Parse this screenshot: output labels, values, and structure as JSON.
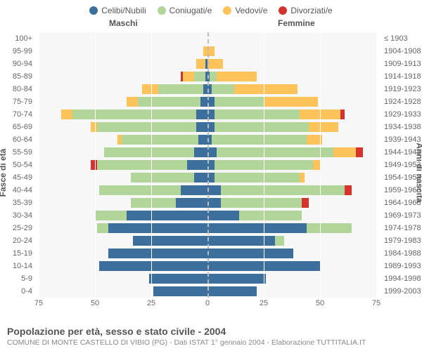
{
  "legend": [
    {
      "label": "Celibi/Nubili",
      "color": "#3c6f9c"
    },
    {
      "label": "Coniugati/e",
      "color": "#b2d69a"
    },
    {
      "label": "Vedovi/e",
      "color": "#fcc35b"
    },
    {
      "label": "Divorziati/e",
      "color": "#d6322e"
    }
  ],
  "headers": {
    "male": "Maschi",
    "female": "Femmine"
  },
  "axis": {
    "left_title": "Fasce di età",
    "right_title": "Anni di nascita",
    "max": 75,
    "ticks": [
      75,
      50,
      25,
      0,
      25,
      50,
      75
    ]
  },
  "colors": {
    "celibi": "#3c6f9c",
    "coniugati": "#b2d69a",
    "vedovi": "#fcc35b",
    "divorziati": "#d6322e",
    "plot_bg": "#f7f7f7",
    "grid": "#ffffff",
    "center": "#bbbbbb"
  },
  "rows": [
    {
      "age": "100+",
      "birth": "≤ 1903",
      "m": {
        "c": 0,
        "m": 0,
        "w": 0,
        "d": 0
      },
      "f": {
        "c": 0,
        "m": 0,
        "w": 0,
        "d": 0
      }
    },
    {
      "age": "95-99",
      "birth": "1904-1908",
      "m": {
        "c": 0,
        "m": 0,
        "w": 2,
        "d": 0
      },
      "f": {
        "c": 0,
        "m": 0,
        "w": 3,
        "d": 0
      }
    },
    {
      "age": "90-94",
      "birth": "1909-1913",
      "m": {
        "c": 1,
        "m": 0,
        "w": 4,
        "d": 0
      },
      "f": {
        "c": 0,
        "m": 0,
        "w": 7,
        "d": 0
      }
    },
    {
      "age": "85-89",
      "birth": "1914-1918",
      "m": {
        "c": 1,
        "m": 5,
        "w": 5,
        "d": 1
      },
      "f": {
        "c": 1,
        "m": 3,
        "w": 18,
        "d": 0
      }
    },
    {
      "age": "80-84",
      "birth": "1919-1923",
      "m": {
        "c": 2,
        "m": 20,
        "w": 7,
        "d": 0
      },
      "f": {
        "c": 2,
        "m": 10,
        "w": 28,
        "d": 0
      }
    },
    {
      "age": "75-79",
      "birth": "1924-1928",
      "m": {
        "c": 3,
        "m": 28,
        "w": 5,
        "d": 0
      },
      "f": {
        "c": 3,
        "m": 22,
        "w": 24,
        "d": 0
      }
    },
    {
      "age": "70-74",
      "birth": "1929-1933",
      "m": {
        "c": 5,
        "m": 55,
        "w": 5,
        "d": 0
      },
      "f": {
        "c": 3,
        "m": 38,
        "w": 18,
        "d": 2
      }
    },
    {
      "age": "65-69",
      "birth": "1934-1938",
      "m": {
        "c": 5,
        "m": 44,
        "w": 3,
        "d": 0
      },
      "f": {
        "c": 3,
        "m": 42,
        "w": 13,
        "d": 0
      }
    },
    {
      "age": "60-64",
      "birth": "1939-1943",
      "m": {
        "c": 4,
        "m": 34,
        "w": 2,
        "d": 0
      },
      "f": {
        "c": 2,
        "m": 42,
        "w": 7,
        "d": 0
      }
    },
    {
      "age": "55-59",
      "birth": "1944-1948",
      "m": {
        "c": 6,
        "m": 40,
        "w": 0,
        "d": 0
      },
      "f": {
        "c": 4,
        "m": 52,
        "w": 10,
        "d": 3
      }
    },
    {
      "age": "50-54",
      "birth": "1949-1953",
      "m": {
        "c": 9,
        "m": 40,
        "w": 0,
        "d": 3
      },
      "f": {
        "c": 3,
        "m": 44,
        "w": 3,
        "d": 0
      }
    },
    {
      "age": "45-49",
      "birth": "1954-1958",
      "m": {
        "c": 6,
        "m": 28,
        "w": 0,
        "d": 0
      },
      "f": {
        "c": 3,
        "m": 38,
        "w": 2,
        "d": 0
      }
    },
    {
      "age": "40-44",
      "birth": "1959-1963",
      "m": {
        "c": 12,
        "m": 36,
        "w": 0,
        "d": 0
      },
      "f": {
        "c": 6,
        "m": 55,
        "w": 0,
        "d": 3
      }
    },
    {
      "age": "35-39",
      "birth": "1964-1968",
      "m": {
        "c": 14,
        "m": 20,
        "w": 0,
        "d": 0
      },
      "f": {
        "c": 6,
        "m": 36,
        "w": 0,
        "d": 3
      }
    },
    {
      "age": "30-34",
      "birth": "1969-1973",
      "m": {
        "c": 36,
        "m": 14,
        "w": 0,
        "d": 0
      },
      "f": {
        "c": 14,
        "m": 28,
        "w": 0,
        "d": 0
      }
    },
    {
      "age": "25-29",
      "birth": "1974-1978",
      "m": {
        "c": 44,
        "m": 5,
        "w": 0,
        "d": 0
      },
      "f": {
        "c": 44,
        "m": 20,
        "w": 0,
        "d": 0
      }
    },
    {
      "age": "20-24",
      "birth": "1979-1983",
      "m": {
        "c": 33,
        "m": 0,
        "w": 0,
        "d": 0
      },
      "f": {
        "c": 30,
        "m": 4,
        "w": 0,
        "d": 0
      }
    },
    {
      "age": "15-19",
      "birth": "1984-1988",
      "m": {
        "c": 44,
        "m": 0,
        "w": 0,
        "d": 0
      },
      "f": {
        "c": 38,
        "m": 0,
        "w": 0,
        "d": 0
      }
    },
    {
      "age": "10-14",
      "birth": "1989-1993",
      "m": {
        "c": 48,
        "m": 0,
        "w": 0,
        "d": 0
      },
      "f": {
        "c": 50,
        "m": 0,
        "w": 0,
        "d": 0
      }
    },
    {
      "age": "5-9",
      "birth": "1994-1998",
      "m": {
        "c": 26,
        "m": 0,
        "w": 0,
        "d": 0
      },
      "f": {
        "c": 26,
        "m": 0,
        "w": 0,
        "d": 0
      }
    },
    {
      "age": "0-4",
      "birth": "1999-2003",
      "m": {
        "c": 24,
        "m": 0,
        "w": 0,
        "d": 0
      },
      "f": {
        "c": 22,
        "m": 0,
        "w": 0,
        "d": 0
      }
    }
  ],
  "footer": {
    "title": "Popolazione per età, sesso e stato civile - 2004",
    "subtitle": "COMUNE DI MONTE CASTELLO DI VIBIO (PG) - Dati ISTAT 1° gennaio 2004 - Elaborazione TUTTITALIA.IT"
  }
}
